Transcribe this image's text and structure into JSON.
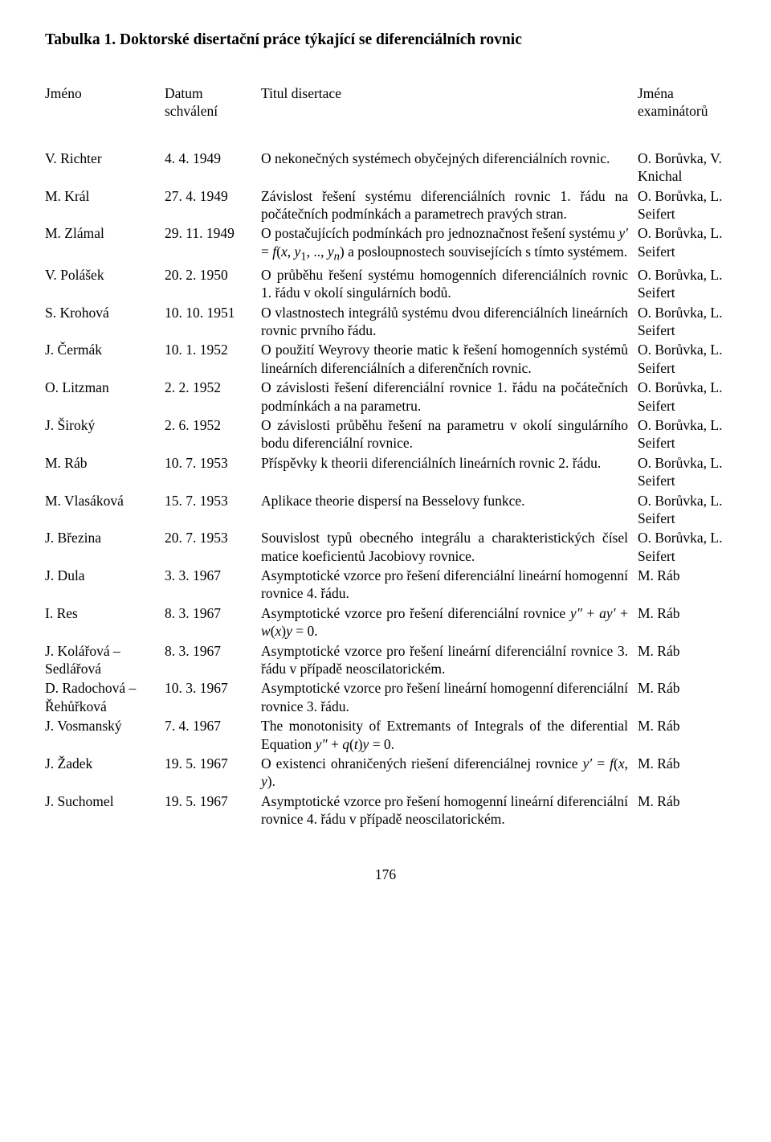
{
  "title": "Tabulka 1. Doktorské disertační práce týkající se diferenciálních rovnic",
  "pageNumber": "176",
  "header": {
    "name": "Jméno",
    "date": "Datum schválení",
    "title": "Titul disertace",
    "examiners": "Jména examinátorů"
  },
  "rows": [
    {
      "name": "V. Richter",
      "date": "4. 4. 1949",
      "title_html": "O nekonečných systémech obyčejných diferenciálních rovnic.",
      "examiners": "O. Borůvka, V. Knichal"
    },
    {
      "name": "M. Král",
      "date": "27. 4. 1949",
      "title_html": "Závislost řešení systému diferenciálních rovnic 1. řádu na počátečních podmínkách a parametrech pravých stran.",
      "examiners": "O. Borůvka, L. Seifert"
    },
    {
      "name": "M. Zlámal",
      "date": "29. 11. 1949",
      "title_html": "O postačujících podmínkách pro jednoznačnost řešení systému <i>y′</i> = <i>f</i>(<i>x</i>, <i>y</i><sub>1</sub>, .., <i>y<sub>n</sub></i>) a posloupnostech souvisejících s tímto systémem.",
      "examiners": "O. Borůvka, L. Seifert"
    },
    {
      "name": "V. Polášek",
      "date": "20. 2. 1950",
      "title_html": "O průběhu řešení systému homogenních diferenciálních rovnic 1. řádu v okolí singulárních bodů.",
      "examiners": "O. Borůvka, L. Seifert"
    },
    {
      "name": "S. Krohová",
      "date": "10. 10. 1951",
      "title_html": "O vlastnostech integrálů systému dvou diferenciálních lineárních rovnic prvního řádu.",
      "examiners": "O. Borůvka, L. Seifert"
    },
    {
      "name": "J. Čermák",
      "date": "10. 1. 1952",
      "title_html": "O použití Weyrovy theorie matic k řešení homogenních systémů lineárních diferenciálních a diferenčních rovnic.",
      "examiners": "O. Borůvka, L. Seifert"
    },
    {
      "name": "O. Litzman",
      "date": "2. 2. 1952",
      "title_html": "O závislosti řešení diferenciální rovnice 1. řádu na počátečních podmínkách a na parametru.",
      "examiners": "O. Borůvka, L. Seifert"
    },
    {
      "name": "J. Široký",
      "date": "2. 6. 1952",
      "title_html": "O závislosti průběhu řešení na parametru v okolí singulárního bodu diferenciální rovnice.",
      "examiners": "O. Borůvka, L. Seifert"
    },
    {
      "name": "M. Ráb",
      "date": "10. 7. 1953",
      "title_html": "Příspěvky k theorii diferenciálních lineárních rovnic 2. řádu.",
      "examiners": "O. Borůvka, L. Seifert"
    },
    {
      "name": "M. Vlasáková",
      "date": "15. 7. 1953",
      "title_html": "Aplikace theorie dispersí na Besselovy funkce.",
      "nj": true,
      "examiners": "O. Borůvka, L. Seifert"
    },
    {
      "name": "J. Březina",
      "date": "20. 7. 1953",
      "title_html": "Souvislost typů obecného integrálu a charakteristických čísel matice koeficientů Jacobiovy rovnice.",
      "examiners": "O. Borůvka, L. Seifert"
    },
    {
      "name": "J. Dula",
      "date": "3. 3. 1967",
      "title_html": "Asymptotické vzorce pro řešení diferenciální lineární homogenní rovnice 4. řádu.",
      "examiners": "M. Ráb"
    },
    {
      "name": "I. Res",
      "date": "8. 3. 1967",
      "title_html": "Asymptotické vzorce pro řešení diferenciální rovnice <i>y″</i> + <i>ay′</i> + <i>w</i>(<i>x</i>)<i>y</i> = 0.",
      "examiners": "M. Ráb"
    },
    {
      "name": "J. Kolářová – Sedlářová",
      "date": "8. 3. 1967",
      "title_html": "Asymptotické vzorce pro řešení lineární diferenciální rovnice 3. řádu v případě neoscilatorickém.",
      "examiners": "M. Ráb"
    },
    {
      "name": "D. Radochová – Řehůřková",
      "date": "10. 3. 1967",
      "title_html": "Asymptotické vzorce pro řešení lineární homogenní diferenciální rovnice 3. řádu.",
      "examiners": "M. Ráb"
    },
    {
      "name": "J. Vosmanský",
      "date": "7. 4. 1967",
      "title_html": "The monotonisity of Extremants of Integrals of the diferential Equation <i>y″</i> + <i>q</i>(<i>t</i>)<i>y</i> = 0.",
      "examiners": "M. Ráb"
    },
    {
      "name": "J. Žadek",
      "date": "19. 5. 1967",
      "title_html": "O existenci ohraničených riešení diferenciálnej rovnice <i>y′</i> = <i>f</i>(<i>x</i>, <i>y</i>).",
      "examiners": "M. Ráb"
    },
    {
      "name": "J. Suchomel",
      "date": "19. 5. 1967",
      "title_html": "Asymptotické vzorce pro řešení homogenní lineární diferenciální rovnice 4. řádu v případě neoscilatorickém.",
      "examiners": "M. Ráb"
    }
  ]
}
